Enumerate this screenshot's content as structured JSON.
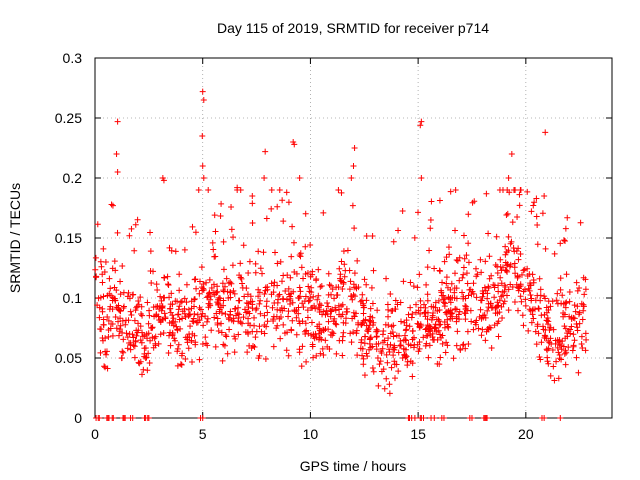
{
  "chart_data": {
    "type": "scatter",
    "title": "Day 115 of 2019, SRMTID for receiver p714",
    "xlabel": "GPS time / hours",
    "ylabel": "SRMTID / TECUs",
    "xlim": [
      0,
      24
    ],
    "ylim": [
      0,
      0.3
    ],
    "x_ticks": [
      0,
      5,
      10,
      15,
      20
    ],
    "x_tick_labels": [
      "0",
      "5",
      "10",
      "15",
      "20"
    ],
    "y_ticks": [
      0,
      0.05,
      0.1,
      0.15,
      0.2,
      0.25,
      0.3
    ],
    "y_tick_labels": [
      "0",
      "0.05",
      "0.1",
      "0.15",
      "0.2",
      "0.25",
      "0.3"
    ],
    "grid": true,
    "marker": "+",
    "marker_color": "#ff0000",
    "series": [
      {
        "name": "SRMTID",
        "trend": [
          [
            0.0,
            0.125
          ],
          [
            0.4,
            0.07
          ],
          [
            1.0,
            0.1
          ],
          [
            1.6,
            0.075
          ],
          [
            2.2,
            0.065
          ],
          [
            2.8,
            0.085
          ],
          [
            3.3,
            0.095
          ],
          [
            3.8,
            0.08
          ],
          [
            4.4,
            0.075
          ],
          [
            5.0,
            0.1
          ],
          [
            5.6,
            0.095
          ],
          [
            6.2,
            0.09
          ],
          [
            6.8,
            0.095
          ],
          [
            7.4,
            0.085
          ],
          [
            8.0,
            0.09
          ],
          [
            8.6,
            0.1
          ],
          [
            9.2,
            0.095
          ],
          [
            9.8,
            0.09
          ],
          [
            10.4,
            0.08
          ],
          [
            11.0,
            0.085
          ],
          [
            11.6,
            0.1
          ],
          [
            12.2,
            0.085
          ],
          [
            12.8,
            0.07
          ],
          [
            13.4,
            0.06
          ],
          [
            14.0,
            0.075
          ],
          [
            14.6,
            0.07
          ],
          [
            15.2,
            0.08
          ],
          [
            15.8,
            0.085
          ],
          [
            16.4,
            0.09
          ],
          [
            17.0,
            0.095
          ],
          [
            17.6,
            0.1
          ],
          [
            18.2,
            0.09
          ],
          [
            18.8,
            0.11
          ],
          [
            19.4,
            0.13
          ],
          [
            20.0,
            0.12
          ],
          [
            20.6,
            0.075
          ],
          [
            21.2,
            0.07
          ],
          [
            21.8,
            0.075
          ],
          [
            22.4,
            0.08
          ],
          [
            22.8,
            0.075
          ]
        ],
        "spikes": [
          [
            1.05,
            0.247
          ],
          [
            1.0,
            0.22
          ],
          [
            1.05,
            0.205
          ],
          [
            3.15,
            0.2
          ],
          [
            3.2,
            0.198
          ],
          [
            5.0,
            0.272
          ],
          [
            5.05,
            0.265
          ],
          [
            4.98,
            0.235
          ],
          [
            5.05,
            0.2
          ],
          [
            5.0,
            0.21
          ],
          [
            6.6,
            0.192
          ],
          [
            7.9,
            0.222
          ],
          [
            7.85,
            0.2
          ],
          [
            9.2,
            0.23
          ],
          [
            9.25,
            0.228
          ],
          [
            8.9,
            0.188
          ],
          [
            9.5,
            0.2
          ],
          [
            11.3,
            0.19
          ],
          [
            12.05,
            0.225
          ],
          [
            12.0,
            0.21
          ],
          [
            11.9,
            0.2
          ],
          [
            15.15,
            0.247
          ],
          [
            15.1,
            0.244
          ],
          [
            15.15,
            0.2
          ],
          [
            19.35,
            0.22
          ],
          [
            19.2,
            0.2
          ],
          [
            19.5,
            0.19
          ],
          [
            20.9,
            0.238
          ],
          [
            20.85,
            0.185
          ],
          [
            6.6,
            0.19
          ]
        ],
        "zero_x": [
          0.05,
          0.15,
          0.2,
          0.55,
          0.6,
          0.65,
          0.8,
          0.85,
          1.3,
          1.35,
          1.4,
          1.65,
          1.75,
          2.3,
          2.35,
          2.45,
          2.5,
          4.9,
          5.0,
          14.55,
          14.6,
          14.7,
          14.85,
          15.1,
          15.15,
          15.25,
          15.6,
          15.75,
          16.1,
          16.2,
          17.4,
          17.5,
          18.05,
          18.1,
          18.15,
          18.2,
          20.75,
          20.85,
          21.6
        ]
      }
    ]
  }
}
